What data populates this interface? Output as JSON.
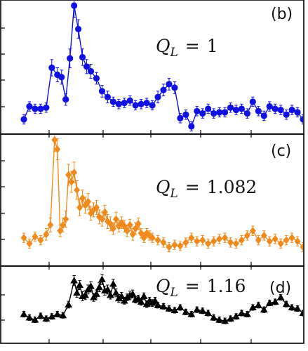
{
  "chart_data": [
    {
      "type": "line",
      "panel_label": "(b)",
      "annotation": {
        "symbol": "Q",
        "subscript": "L",
        "relation": "=",
        "value": "1"
      },
      "color": "#1010e0",
      "marker": "circle",
      "xlim": [
        0,
        100
      ],
      "ylim": [
        0,
        100
      ],
      "x": [
        0,
        2,
        4,
        6,
        8,
        10,
        12,
        13.5,
        15,
        16.5,
        18,
        19.5,
        21,
        22.5,
        24,
        26,
        28,
        30,
        32,
        34,
        36,
        38,
        40,
        42,
        44,
        46,
        48,
        50,
        52,
        54,
        56,
        58,
        60,
        62,
        64,
        66,
        68,
        70,
        72,
        74,
        76,
        78,
        80,
        82,
        84,
        86,
        88,
        90,
        92,
        94,
        96,
        98,
        100
      ],
      "y": [
        3,
        14,
        12,
        12,
        13,
        47,
        41,
        39,
        20,
        55,
        100,
        80,
        56,
        48,
        44,
        38,
        27,
        22,
        18,
        16,
        17,
        19,
        15,
        16,
        17,
        15,
        22,
        28,
        33,
        30,
        4,
        7,
        -3,
        10,
        8,
        12,
        8,
        9,
        9,
        13,
        11,
        12,
        8,
        18,
        10,
        6,
        14,
        12,
        11,
        7,
        11,
        9,
        3
      ],
      "err": [
        4,
        4,
        4,
        4,
        4,
        7,
        6,
        6,
        5,
        8,
        10,
        8,
        7,
        6,
        6,
        5,
        5,
        5,
        4,
        4,
        4,
        4,
        4,
        4,
        4,
        4,
        5,
        5,
        5,
        5,
        4,
        4,
        4,
        4,
        4,
        4,
        4,
        4,
        4,
        4,
        4,
        4,
        4,
        4,
        4,
        4,
        4,
        4,
        4,
        4,
        4,
        4,
        4
      ]
    },
    {
      "type": "line",
      "panel_label": "(c)",
      "annotation": {
        "symbol": "Q",
        "subscript": "L",
        "relation": "=",
        "value": "1.082"
      },
      "color": "#f08a1c",
      "marker": "diamond",
      "xlim": [
        0,
        100
      ],
      "ylim": [
        0,
        100
      ],
      "x": [
        0,
        2,
        4,
        6,
        8,
        9.5,
        11,
        12,
        13,
        14,
        15,
        16,
        17,
        18,
        19,
        20,
        21,
        22,
        23,
        24,
        25,
        26,
        27,
        28,
        29,
        30,
        31,
        32,
        33,
        34,
        35,
        36,
        37,
        38,
        39,
        40,
        41,
        42,
        43,
        44,
        45,
        46,
        48,
        50,
        52,
        54,
        56,
        58,
        60,
        62,
        64,
        66,
        68,
        70,
        72,
        74,
        76,
        78,
        80,
        82,
        84,
        86,
        88,
        90,
        92,
        94,
        96,
        98,
        100
      ],
      "y": [
        14,
        9,
        15,
        12,
        17,
        25,
        98,
        90,
        20,
        25,
        30,
        68,
        62,
        70,
        55,
        40,
        48,
        42,
        45,
        35,
        38,
        40,
        32,
        30,
        36,
        28,
        26,
        22,
        30,
        24,
        27,
        24,
        20,
        25,
        17,
        22,
        26,
        18,
        14,
        18,
        16,
        14,
        12,
        10,
        6,
        8,
        7,
        10,
        14,
        11,
        12,
        9,
        11,
        13,
        14,
        10,
        9,
        12,
        16,
        20,
        12,
        16,
        11,
        13,
        9,
        12,
        14,
        11,
        6
      ],
      "err": [
        4,
        4,
        4,
        4,
        5,
        6,
        10,
        9,
        5,
        6,
        7,
        9,
        9,
        9,
        8,
        7,
        7,
        7,
        7,
        6,
        6,
        6,
        6,
        6,
        6,
        6,
        6,
        5,
        6,
        5,
        5,
        5,
        5,
        5,
        5,
        5,
        5,
        4,
        4,
        4,
        4,
        4,
        4,
        4,
        4,
        4,
        4,
        4,
        4,
        4,
        4,
        4,
        4,
        4,
        4,
        4,
        4,
        4,
        4,
        4,
        4,
        4,
        4,
        4,
        4,
        4,
        4,
        4,
        4
      ]
    },
    {
      "type": "line",
      "panel_label": "(d)",
      "annotation": {
        "symbol": "Q",
        "subscript": "L",
        "relation": "=",
        "value": "1.16"
      },
      "color": "#000000",
      "marker": "triangle",
      "xlim": [
        0,
        100
      ],
      "ylim": [
        0,
        100
      ],
      "x": [
        0,
        2,
        4,
        6,
        8,
        10,
        12,
        14,
        16,
        18,
        19,
        20,
        21,
        22,
        23,
        24,
        25,
        26,
        27,
        28,
        29,
        30,
        31,
        32,
        33,
        34,
        35,
        36,
        37,
        38,
        39,
        40,
        41,
        42,
        43,
        44,
        45,
        46,
        47,
        48,
        50,
        52,
        54,
        56,
        58,
        60,
        62,
        64,
        66,
        68,
        70,
        72,
        74,
        76,
        78,
        80,
        82,
        84,
        86,
        88,
        90,
        92,
        94,
        96,
        98,
        100
      ],
      "y": [
        28,
        22,
        18,
        25,
        20,
        24,
        28,
        26,
        45,
        88,
        66,
        80,
        60,
        62,
        72,
        78,
        58,
        64,
        76,
        90,
        70,
        72,
        62,
        82,
        66,
        56,
        60,
        52,
        58,
        62,
        64,
        54,
        56,
        50,
        60,
        46,
        52,
        48,
        52,
        44,
        42,
        38,
        35,
        40,
        32,
        28,
        36,
        34,
        30,
        22,
        18,
        16,
        20,
        24,
        30,
        28,
        40,
        44,
        36,
        48,
        50,
        58,
        46,
        40,
        38,
        30
      ],
      "err": [
        5,
        5,
        5,
        5,
        5,
        5,
        5,
        5,
        6,
        9,
        8,
        8,
        8,
        8,
        8,
        8,
        7,
        7,
        8,
        9,
        8,
        8,
        7,
        8,
        7,
        7,
        7,
        6,
        6,
        7,
        7,
        6,
        6,
        6,
        6,
        6,
        6,
        6,
        6,
        5,
        5,
        5,
        5,
        5,
        5,
        5,
        5,
        5,
        5,
        5,
        5,
        5,
        5,
        5,
        5,
        5,
        5,
        5,
        5,
        5,
        5,
        5,
        5,
        5,
        5,
        5
      ]
    }
  ]
}
